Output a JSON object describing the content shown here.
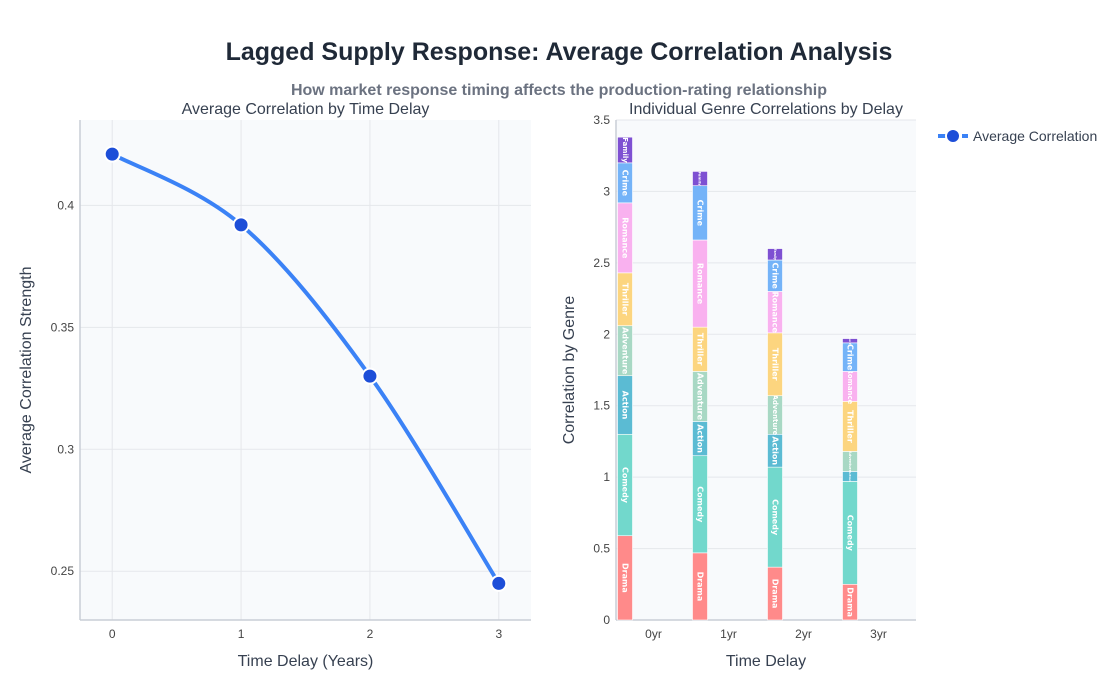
{
  "figure": {
    "title": "Lagged Supply Response: Average Correlation Analysis",
    "subtitle": "How market response timing affects the production-rating relationship"
  },
  "legend": {
    "label": "Average Correlation",
    "position": "top-right"
  },
  "colors": {
    "line": "#3b82f6",
    "marker": "#1d4ed8",
    "plot_bg": "#f8fafc",
    "grid": "#e5e7eb",
    "genres": {
      "Drama": "#ff8a8a",
      "Comedy": "#72d8cc",
      "Action": "#5bbbd3",
      "Adventure": "#a8d8c4",
      "Thriller": "#fcd57f",
      "Romance": "#f9b1ef",
      "Crime": "#74b3f8",
      "Family": "#7e50d2"
    }
  },
  "chart_data": [
    {
      "type": "line",
      "title": "Average Correlation by Time Delay",
      "xlabel": "Time Delay (Years)",
      "ylabel": "Average Correlation Strength",
      "x": [
        0,
        1,
        2,
        3
      ],
      "x_ticks": [
        "0",
        "1",
        "2",
        "3"
      ],
      "xlim": [
        -0.25,
        3.25
      ],
      "ylim": [
        0.23,
        0.435
      ],
      "y_ticks": [
        0.25,
        0.3,
        0.35,
        0.4
      ],
      "y_tick_labels": [
        "0.25",
        "0.3",
        "0.35",
        "0.4"
      ],
      "series": [
        {
          "name": "Average Correlation",
          "values": [
            0.421,
            0.392,
            0.33,
            0.245
          ]
        }
      ],
      "smoothed": true,
      "grid": true
    },
    {
      "type": "bar",
      "stacked": true,
      "title": "Individual Genre Correlations by Delay",
      "xlabel": "Time Delay",
      "ylabel": "Correlation by Genre",
      "categories": [
        "0yr",
        "1yr",
        "2yr",
        "3yr"
      ],
      "ylim": [
        0,
        3.5
      ],
      "y_ticks": [
        0,
        0.5,
        1,
        1.5,
        2,
        2.5,
        3,
        3.5
      ],
      "y_tick_labels": [
        "0",
        "0.5",
        "1",
        "1.5",
        "2",
        "2.5",
        "3",
        "3.5"
      ],
      "bar_offset": -0.38,
      "bar_width": 0.16,
      "series": [
        {
          "name": "Drama",
          "values": [
            0.59,
            0.47,
            0.37,
            0.25
          ]
        },
        {
          "name": "Comedy",
          "values": [
            0.71,
            0.68,
            0.7,
            0.72
          ]
        },
        {
          "name": "Action",
          "values": [
            0.41,
            0.24,
            0.23,
            0.07
          ]
        },
        {
          "name": "Adventure",
          "values": [
            0.35,
            0.35,
            0.27,
            0.14
          ]
        },
        {
          "name": "Thriller",
          "values": [
            0.37,
            0.31,
            0.44,
            0.35
          ]
        },
        {
          "name": "Romance",
          "values": [
            0.49,
            0.61,
            0.29,
            0.21
          ]
        },
        {
          "name": "Crime",
          "values": [
            0.28,
            0.38,
            0.22,
            0.2
          ]
        },
        {
          "name": "Family",
          "values": [
            0.18,
            0.1,
            0.08,
            0.03
          ]
        }
      ],
      "grid": true
    }
  ]
}
